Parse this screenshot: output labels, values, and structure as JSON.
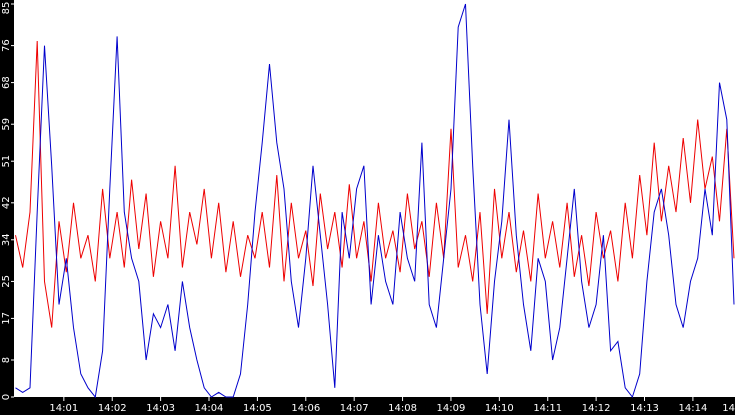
{
  "chart_data": {
    "type": "line",
    "x": [
      0,
      0.15,
      0.3,
      0.45,
      0.6,
      0.75,
      0.9,
      1.05,
      1.2,
      1.35,
      1.5,
      1.65,
      1.8,
      1.95,
      2.1,
      2.25,
      2.4,
      2.55,
      2.7,
      2.85,
      3,
      3.15,
      3.3,
      3.45,
      3.6,
      3.75,
      3.9,
      4.05,
      4.2,
      4.35,
      4.5,
      4.65,
      4.8,
      4.95,
      5.1,
      5.25,
      5.4,
      5.55,
      5.7,
      5.85,
      6,
      6.15,
      6.3,
      6.45,
      6.6,
      6.75,
      6.9,
      7.05,
      7.2,
      7.35,
      7.5,
      7.65,
      7.8,
      7.95,
      8.1,
      8.25,
      8.4,
      8.55,
      8.7,
      8.85,
      9,
      9.15,
      9.3,
      9.45,
      9.6,
      9.75,
      9.9,
      10.05,
      10.2,
      10.35,
      10.5,
      10.65,
      10.8,
      10.95,
      11.1,
      11.25,
      11.4,
      11.55,
      11.7,
      11.85,
      12,
      12.15,
      12.3,
      12.45,
      12.6,
      12.75,
      12.9,
      13.05,
      13.2,
      13.35,
      13.5,
      13.65,
      13.8,
      13.95,
      14.1,
      14.25,
      14.4,
      14.55,
      14.7,
      14.85
    ],
    "series": [
      {
        "color": "#ee0000",
        "values": [
          35,
          28,
          40,
          77,
          25,
          15,
          38,
          27,
          42,
          30,
          35,
          25,
          45,
          30,
          40,
          28,
          47,
          32,
          44,
          26,
          38,
          30,
          50,
          28,
          40,
          33,
          45,
          30,
          42,
          27,
          38,
          26,
          35,
          30,
          40,
          28,
          48,
          25,
          42,
          30,
          36,
          24,
          44,
          32,
          40,
          28,
          46,
          30,
          38,
          25,
          42,
          30,
          36,
          27,
          44,
          32,
          38,
          26,
          42,
          30,
          58,
          28,
          35,
          25,
          40,
          18,
          45,
          30,
          40,
          27,
          36,
          25,
          44,
          30,
          38,
          28,
          42,
          26,
          35,
          24,
          40,
          30,
          36,
          25,
          42,
          30,
          48,
          35,
          55,
          38,
          50,
          40,
          56,
          42,
          60,
          45,
          52,
          38,
          58,
          30
        ]
      },
      {
        "color": "#0000cc",
        "values": [
          2,
          1,
          2,
          40,
          76,
          50,
          20,
          30,
          15,
          5,
          2,
          0,
          10,
          45,
          78,
          40,
          30,
          25,
          8,
          18,
          15,
          20,
          10,
          25,
          15,
          8,
          2,
          0,
          1,
          0,
          0,
          5,
          20,
          40,
          55,
          72,
          55,
          45,
          25,
          15,
          30,
          50,
          35,
          20,
          2,
          40,
          30,
          45,
          50,
          20,
          35,
          25,
          20,
          40,
          30,
          25,
          55,
          20,
          15,
          30,
          45,
          80,
          85,
          50,
          20,
          5,
          25,
          38,
          60,
          35,
          20,
          10,
          30,
          25,
          8,
          15,
          30,
          45,
          25,
          15,
          20,
          35,
          10,
          12,
          2,
          0,
          5,
          25,
          40,
          45,
          35,
          20,
          15,
          25,
          30,
          45,
          35,
          68,
          60,
          20
        ]
      }
    ],
    "xlim": [
      -0.03,
      14.87
    ],
    "xticks": [
      {
        "value": 1,
        "label": "14:01"
      },
      {
        "value": 2,
        "label": "14:02"
      },
      {
        "value": 3,
        "label": "14:03"
      },
      {
        "value": 4,
        "label": "14:04"
      },
      {
        "value": 5,
        "label": "14:05"
      },
      {
        "value": 6,
        "label": "14:06"
      },
      {
        "value": 7,
        "label": "14:07"
      },
      {
        "value": 8,
        "label": "14:08"
      },
      {
        "value": 9,
        "label": "14:09"
      },
      {
        "value": 10,
        "label": "14:10"
      },
      {
        "value": 11,
        "label": "14:11"
      },
      {
        "value": 12,
        "label": "14:12"
      },
      {
        "value": 13,
        "label": "14:13"
      },
      {
        "value": 14,
        "label": "14:14"
      },
      {
        "value": 15,
        "label": "14"
      }
    ],
    "ylim": [
      0,
      85
    ],
    "yticks": [
      0,
      8,
      17,
      25,
      34,
      42,
      51,
      59,
      68,
      76,
      85
    ]
  }
}
